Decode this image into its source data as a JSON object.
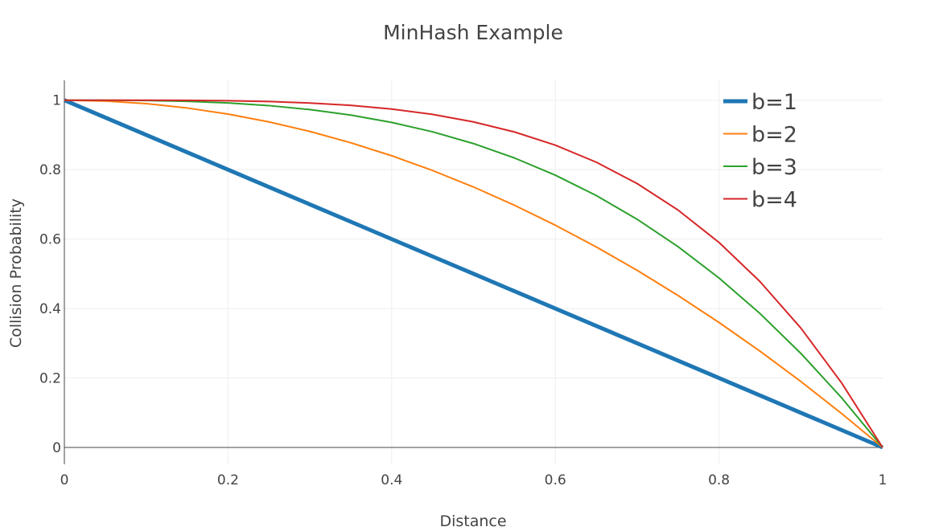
{
  "chart_data": {
    "type": "line",
    "title": "MinHash Example",
    "xlabel": "Distance",
    "ylabel": "Collision Probability",
    "xlim": [
      0,
      1
    ],
    "ylim": [
      -0.03,
      1.06
    ],
    "x_ticks": [
      "0",
      "0.2",
      "0.4",
      "0.6",
      "0.8",
      "1"
    ],
    "y_ticks": [
      "0",
      "0.2",
      "0.4",
      "0.6",
      "0.8",
      "1"
    ],
    "grid": true,
    "legend_position": "top-right",
    "x": [
      0,
      0.05,
      0.1,
      0.15,
      0.2,
      0.25,
      0.3,
      0.35,
      0.4,
      0.45,
      0.5,
      0.55,
      0.6,
      0.65,
      0.7,
      0.75,
      0.8,
      0.85,
      0.9,
      0.95,
      1
    ],
    "series": [
      {
        "name": "b=1",
        "color": "#1f77b4",
        "values": [
          1,
          0.95,
          0.9,
          0.85,
          0.8,
          0.75,
          0.7,
          0.65,
          0.6,
          0.55,
          0.5,
          0.45,
          0.4,
          0.35,
          0.3,
          0.25,
          0.2,
          0.15,
          0.1,
          0.05,
          0
        ]
      },
      {
        "name": "b=2",
        "color": "#ff7f0e",
        "values": [
          1,
          0.9975,
          0.99,
          0.9775,
          0.96,
          0.9375,
          0.91,
          0.8775,
          0.84,
          0.7975,
          0.75,
          0.6975,
          0.64,
          0.5775,
          0.51,
          0.4375,
          0.36,
          0.2775,
          0.19,
          0.0975,
          0
        ]
      },
      {
        "name": "b=3",
        "color": "#2ca02c",
        "values": [
          1,
          0.9999,
          0.999,
          0.9966,
          0.992,
          0.9844,
          0.973,
          0.9571,
          0.936,
          0.9089,
          0.875,
          0.8336,
          0.784,
          0.7254,
          0.657,
          0.5781,
          0.488,
          0.3859,
          0.271,
          0.1426,
          0
        ]
      },
      {
        "name": "b=4",
        "color": "#d62728",
        "values": [
          1,
          1,
          0.9999,
          0.9995,
          0.9984,
          0.9961,
          0.9919,
          0.985,
          0.9744,
          0.959,
          0.9375,
          0.9085,
          0.8704,
          0.8215,
          0.7599,
          0.6836,
          0.5904,
          0.478,
          0.3439,
          0.1855,
          0
        ]
      }
    ]
  }
}
